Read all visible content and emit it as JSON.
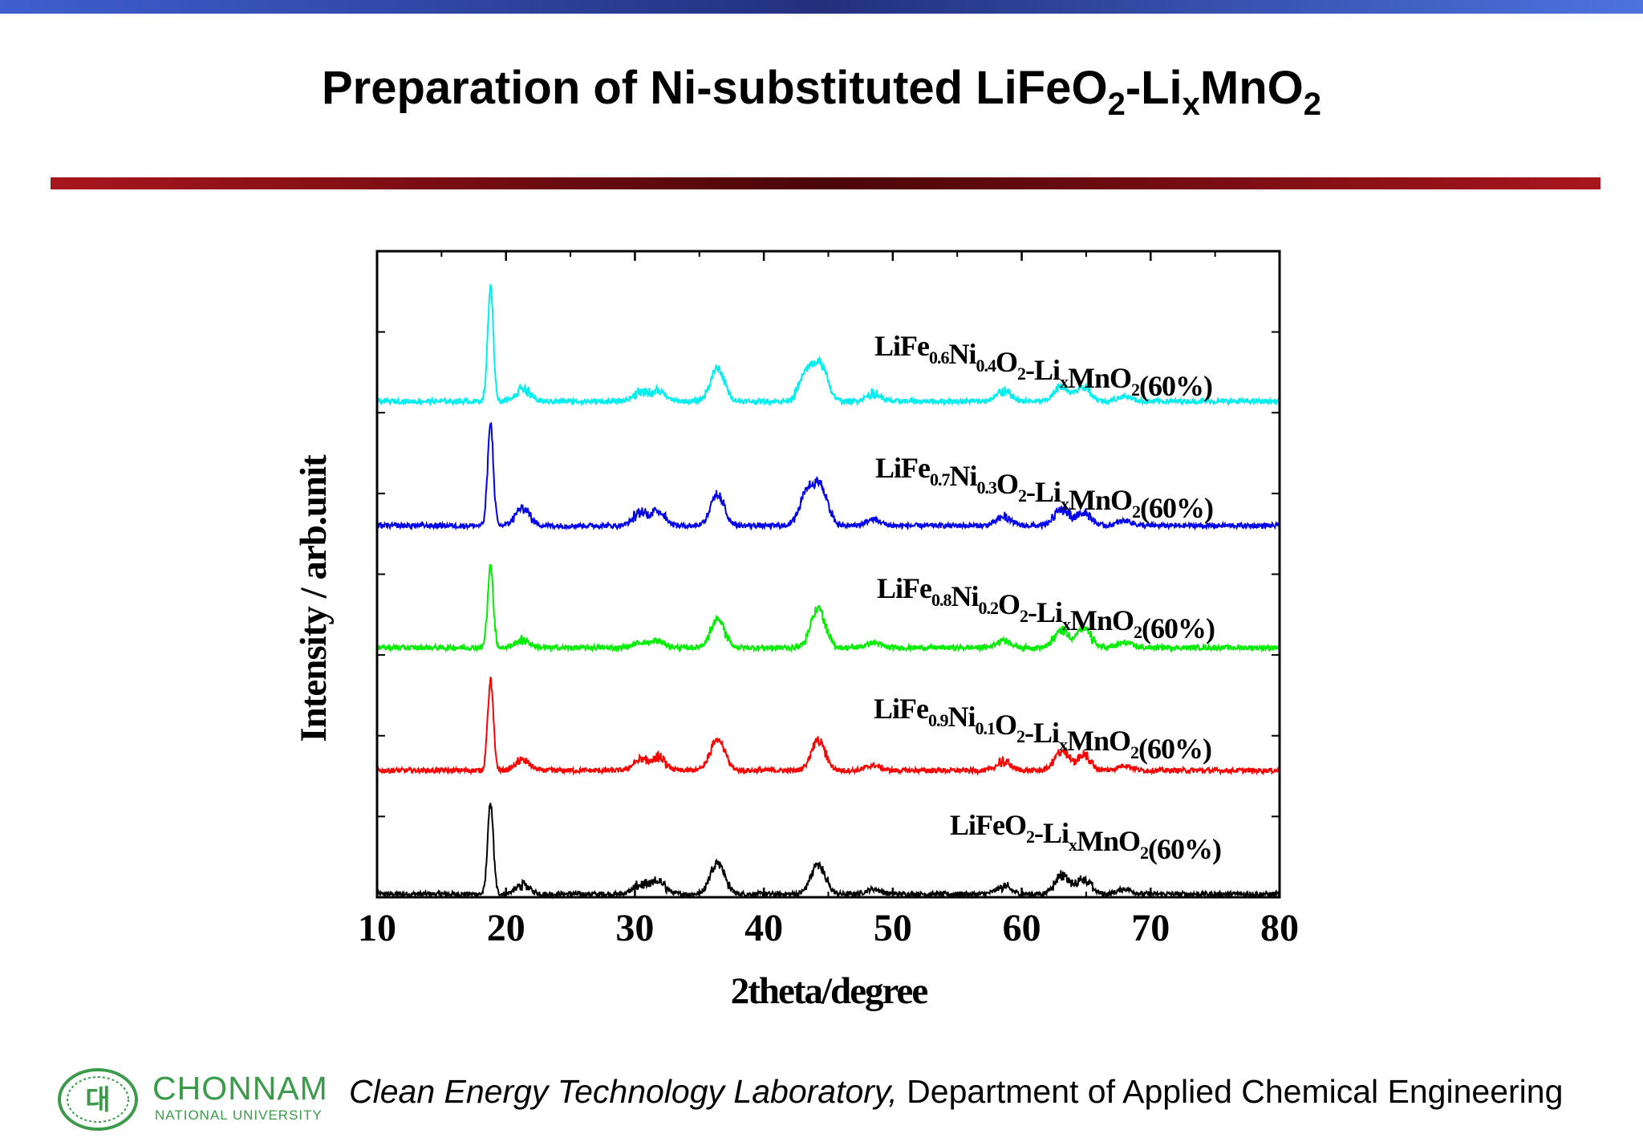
{
  "slide": {
    "title_parts": [
      "Preparation of Ni-substituted LiFeO",
      "2",
      "-Li",
      "x",
      "MnO",
      "2"
    ],
    "top_bar_color": "#3f5fcf",
    "rule_color": "#a8161d"
  },
  "footer": {
    "university_name": "CHONNAM",
    "university_sub": "NATIONAL UNIVERSITY",
    "logo_glyph": "대",
    "lab_name": "Clean Energy Technology Laboratory,",
    "department": " Department of Applied Chemical Engineering",
    "brand_color": "#3b9b4a"
  },
  "chart_data": {
    "type": "line",
    "title": "",
    "xlabel": "2theta/degree",
    "ylabel": "Intensity / arb.unit",
    "xlim": [
      10,
      80
    ],
    "x_ticks": [
      10,
      20,
      30,
      40,
      50,
      60,
      70,
      80
    ],
    "grid": false,
    "yaxis_tick_labels": false,
    "series": [
      {
        "name": "LiFeO2-LixMnO2(60%)",
        "label_parts": [
          [
            "LiFeO",
            ""
          ],
          [
            "2",
            "s"
          ],
          [
            "-Li",
            ""
          ],
          [
            "x",
            "s"
          ],
          [
            "MnO",
            ""
          ],
          [
            "2",
            "s"
          ],
          [
            "(60%)",
            ""
          ]
        ],
        "color": "#000000",
        "peaks": [
          [
            18.8,
            72
          ],
          [
            21.3,
            7
          ],
          [
            30.4,
            7
          ],
          [
            31.8,
            10
          ],
          [
            36.4,
            26
          ],
          [
            44.2,
            24
          ],
          [
            48.5,
            4
          ],
          [
            58.6,
            6
          ],
          [
            63.1,
            15
          ],
          [
            64.8,
            12
          ],
          [
            68.0,
            4
          ]
        ]
      },
      {
        "name": "LiFe0.9Ni0.1O2-LixMnO2(60%)",
        "label_parts": [
          [
            "LiFe",
            ""
          ],
          [
            "0.9",
            "s"
          ],
          [
            "Ni",
            ""
          ],
          [
            "0.1",
            "s"
          ],
          [
            "O",
            ""
          ],
          [
            "2",
            "s"
          ],
          [
            "-Li",
            ""
          ],
          [
            "x",
            "s"
          ],
          [
            "MnO",
            ""
          ],
          [
            "2",
            "s"
          ],
          [
            "(60%)",
            ""
          ]
        ],
        "color": "#ff0000",
        "peaks": [
          [
            18.8,
            72
          ],
          [
            21.3,
            8
          ],
          [
            30.4,
            8
          ],
          [
            31.8,
            10
          ],
          [
            36.4,
            26
          ],
          [
            44.2,
            24
          ],
          [
            48.5,
            4
          ],
          [
            58.6,
            7
          ],
          [
            63.1,
            15
          ],
          [
            64.8,
            12
          ],
          [
            68.0,
            4
          ]
        ]
      },
      {
        "name": "LiFe0.8Ni0.2O2-LixMnO2(60%)",
        "label_parts": [
          [
            "LiFe",
            ""
          ],
          [
            "0.8",
            "s"
          ],
          [
            "Ni",
            ""
          ],
          [
            "0.2",
            "s"
          ],
          [
            "O",
            ""
          ],
          [
            "2",
            "s"
          ],
          [
            "-Li",
            ""
          ],
          [
            "x",
            "s"
          ],
          [
            "MnO",
            ""
          ],
          [
            "2",
            "s"
          ],
          [
            "(60%)",
            ""
          ]
        ],
        "color": "#00ee00",
        "peaks": [
          [
            18.8,
            65
          ],
          [
            21.3,
            6
          ],
          [
            30.4,
            4
          ],
          [
            31.8,
            5
          ],
          [
            36.4,
            22
          ],
          [
            44.2,
            32
          ],
          [
            48.5,
            4
          ],
          [
            58.6,
            6
          ],
          [
            63.1,
            14
          ],
          [
            64.8,
            15
          ],
          [
            68.0,
            4
          ]
        ]
      },
      {
        "name": "LiFe0.7Ni0.3O2-LixMnO2(60%)",
        "label_parts": [
          [
            "LiFe",
            ""
          ],
          [
            "0.7",
            "s"
          ],
          [
            "Ni",
            ""
          ],
          [
            "0.3",
            "s"
          ],
          [
            "O",
            ""
          ],
          [
            "2",
            "s"
          ],
          [
            "-Li",
            ""
          ],
          [
            "x",
            "s"
          ],
          [
            "MnO",
            ""
          ],
          [
            "2",
            "s"
          ],
          [
            "(60%)",
            ""
          ]
        ],
        "color": "#0000ee",
        "peaks": [
          [
            18.8,
            82
          ],
          [
            21.3,
            14
          ],
          [
            30.4,
            10
          ],
          [
            31.8,
            12
          ],
          [
            36.4,
            24
          ],
          [
            43.3,
            26
          ],
          [
            44.4,
            30
          ],
          [
            48.5,
            5
          ],
          [
            58.6,
            7
          ],
          [
            63.1,
            13
          ],
          [
            64.8,
            11
          ],
          [
            68.0,
            4
          ]
        ]
      },
      {
        "name": "LiFe0.6Ni0.4O2-LixMnO2(60%)",
        "label_parts": [
          [
            "LiFe",
            ""
          ],
          [
            "0.6",
            "s"
          ],
          [
            "Ni",
            ""
          ],
          [
            "0.4",
            "s"
          ],
          [
            "O",
            ""
          ],
          [
            "2",
            "s"
          ],
          [
            "-Li",
            ""
          ],
          [
            "x",
            "s"
          ],
          [
            "MnO",
            ""
          ],
          [
            "2",
            "s"
          ],
          [
            "(60%)",
            ""
          ]
        ],
        "color": "#00eeee",
        "peaks": [
          [
            18.8,
            92
          ],
          [
            21.3,
            10
          ],
          [
            30.4,
            7
          ],
          [
            31.8,
            8
          ],
          [
            36.4,
            26
          ],
          [
            43.3,
            22
          ],
          [
            44.4,
            28
          ],
          [
            48.5,
            6
          ],
          [
            58.6,
            8
          ],
          [
            63.1,
            12
          ],
          [
            64.8,
            12
          ],
          [
            68.0,
            4
          ]
        ]
      }
    ]
  }
}
